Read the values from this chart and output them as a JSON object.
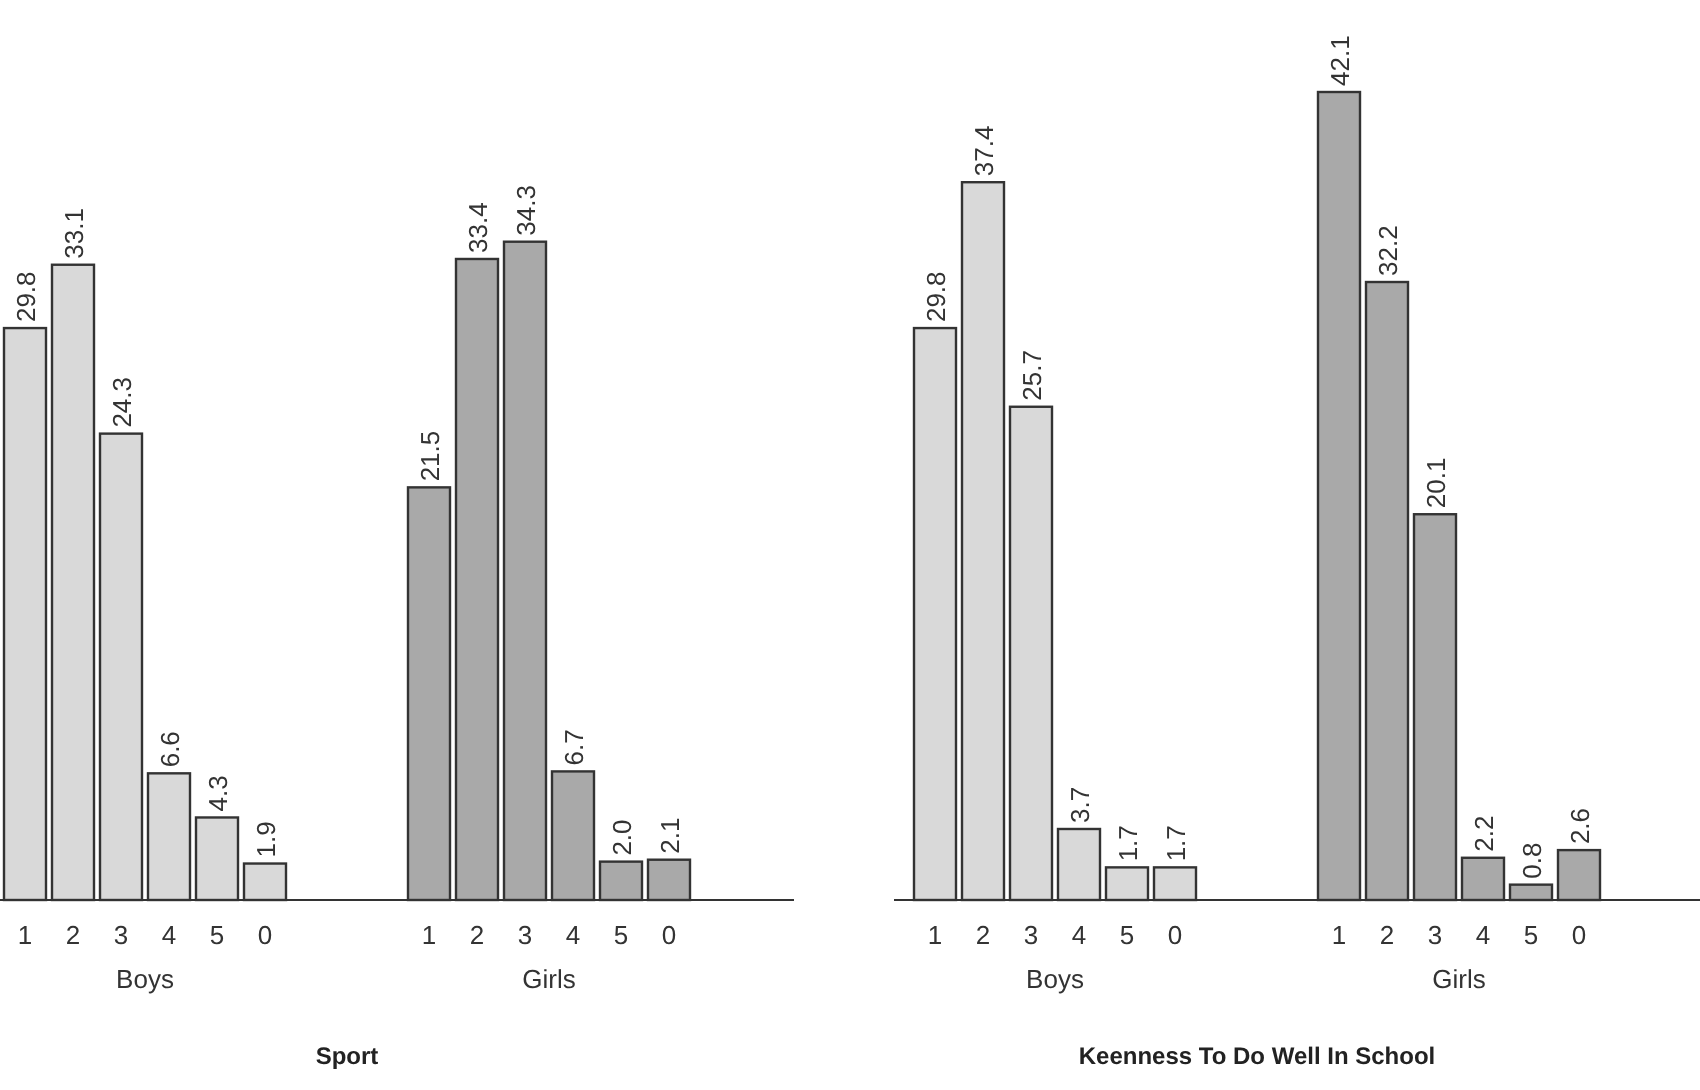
{
  "chart_data": [
    {
      "type": "bar",
      "title": "Sport",
      "categories": [
        "1",
        "2",
        "3",
        "4",
        "5",
        "0",
        "1",
        "2",
        "3",
        "4",
        "5",
        "0"
      ],
      "data_labels": true,
      "legend": false,
      "series": [
        {
          "name": "Boys",
          "color": "#d9d9d9",
          "values": [
            29.8,
            33.1,
            24.3,
            6.6,
            4.3,
            1.9,
            null,
            null,
            null,
            null,
            null,
            null
          ]
        },
        {
          "name": "Girls",
          "color": "#a9a9a9",
          "values": [
            null,
            null,
            null,
            null,
            null,
            null,
            21.5,
            33.4,
            34.3,
            6.7,
            2.0,
            2.1
          ],
          "value_labels": [
            null,
            null,
            null,
            null,
            null,
            null,
            "21.5",
            "33.4",
            "34.3",
            "6.7",
            "2.0",
            "2.1"
          ]
        }
      ]
    },
    {
      "type": "bar",
      "title": "Keenness To Do  Well In School",
      "categories": [
        "1",
        "2",
        "3",
        "4",
        "5",
        "0",
        "1",
        "2",
        "3",
        "4",
        "5",
        "0"
      ],
      "data_labels": true,
      "legend": false,
      "series": [
        {
          "name": "Boys",
          "color": "#d9d9d9",
          "values": [
            29.8,
            37.4,
            25.7,
            3.7,
            1.7,
            1.7,
            null,
            null,
            null,
            null,
            null,
            null
          ]
        },
        {
          "name": "Girls",
          "color": "#a9a9a9",
          "values": [
            null,
            null,
            null,
            null,
            null,
            null,
            42.1,
            32.2,
            20.1,
            2.2,
            0.8,
            2.6
          ]
        }
      ]
    }
  ]
}
